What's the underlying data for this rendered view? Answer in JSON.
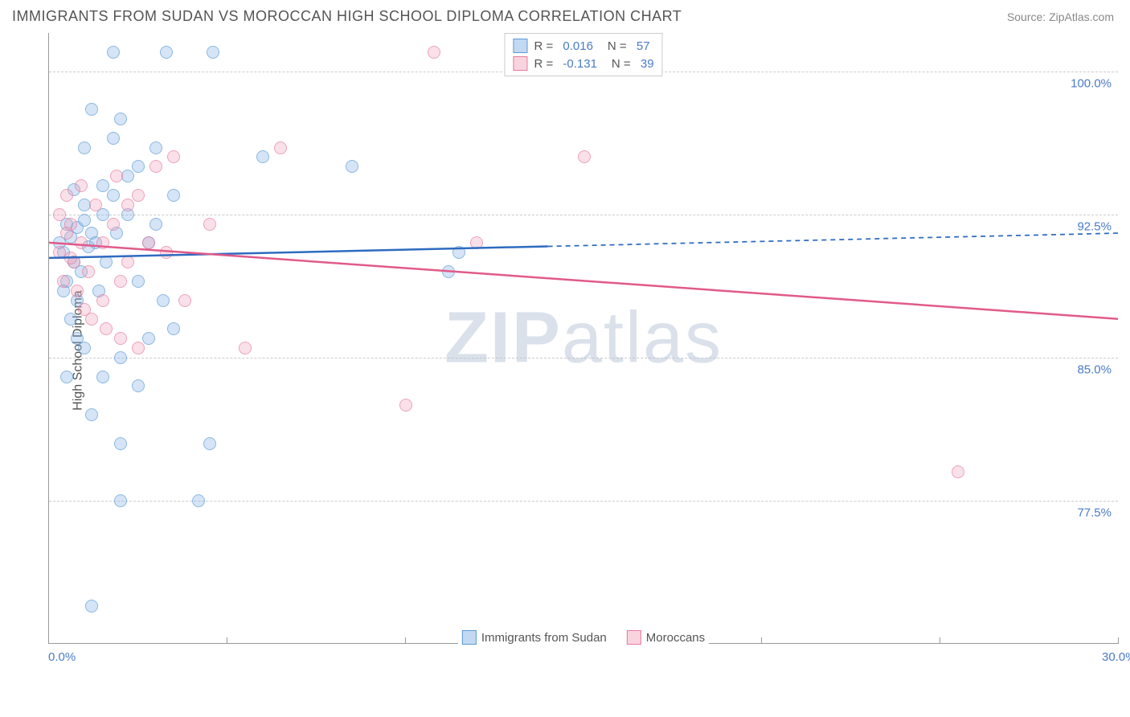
{
  "header": {
    "title": "IMMIGRANTS FROM SUDAN VS MOROCCAN HIGH SCHOOL DIPLOMA CORRELATION CHART",
    "source": "Source: ZipAtlas.com"
  },
  "chart": {
    "type": "scatter",
    "y_axis_label": "High School Diploma",
    "xlim": [
      0,
      30
    ],
    "ylim": [
      70,
      102
    ],
    "x_ticks": [
      0,
      5,
      10,
      15,
      20,
      25,
      30
    ],
    "x_tick_labels": {
      "0": "0.0%",
      "30": "30.0%"
    },
    "y_gridlines": [
      77.5,
      85.0,
      92.5,
      100.0
    ],
    "y_tick_labels": [
      "77.5%",
      "85.0%",
      "92.5%",
      "100.0%"
    ],
    "background_color": "#ffffff",
    "grid_color": "#cccccc",
    "axis_color": "#999999",
    "tick_label_color": "#4a7bc8",
    "axis_label_color": "#555555",
    "marker_radius": 8,
    "series": [
      {
        "name": "Immigrants from Sudan",
        "color_fill": "rgba(135,180,230,0.5)",
        "color_stroke": "#5a9bd5",
        "R": "0.016",
        "N": "57",
        "trend": {
          "x1": 0,
          "y1": 90.2,
          "x2": 30,
          "y2": 91.5,
          "solid_until_x": 14,
          "color": "#2e6bc0",
          "width": 2.5
        },
        "points": [
          {
            "x": 0.3,
            "y": 91
          },
          {
            "x": 0.4,
            "y": 90.5
          },
          {
            "x": 0.5,
            "y": 92
          },
          {
            "x": 0.6,
            "y": 91.3
          },
          {
            "x": 0.7,
            "y": 90
          },
          {
            "x": 0.8,
            "y": 91.8
          },
          {
            "x": 0.9,
            "y": 89.5
          },
          {
            "x": 1.0,
            "y": 92.2
          },
          {
            "x": 1.1,
            "y": 90.8
          },
          {
            "x": 1.2,
            "y": 91.5
          },
          {
            "x": 0.5,
            "y": 89
          },
          {
            "x": 0.8,
            "y": 88
          },
          {
            "x": 1.0,
            "y": 93
          },
          {
            "x": 1.3,
            "y": 91
          },
          {
            "x": 1.5,
            "y": 92.5
          },
          {
            "x": 1.2,
            "y": 98
          },
          {
            "x": 1.8,
            "y": 96.5
          },
          {
            "x": 2.0,
            "y": 97.5
          },
          {
            "x": 1.5,
            "y": 94
          },
          {
            "x": 2.2,
            "y": 94.5
          },
          {
            "x": 1.8,
            "y": 101
          },
          {
            "x": 3.3,
            "y": 101
          },
          {
            "x": 4.6,
            "y": 101
          },
          {
            "x": 2.5,
            "y": 89
          },
          {
            "x": 2.8,
            "y": 91
          },
          {
            "x": 3.0,
            "y": 92
          },
          {
            "x": 3.2,
            "y": 88
          },
          {
            "x": 3.5,
            "y": 86.5
          },
          {
            "x": 2.0,
            "y": 85
          },
          {
            "x": 2.5,
            "y": 83.5
          },
          {
            "x": 1.5,
            "y": 84
          },
          {
            "x": 1.0,
            "y": 85.5
          },
          {
            "x": 0.8,
            "y": 86
          },
          {
            "x": 1.2,
            "y": 82
          },
          {
            "x": 2.0,
            "y": 80.5
          },
          {
            "x": 4.5,
            "y": 80.5
          },
          {
            "x": 2.0,
            "y": 77.5
          },
          {
            "x": 4.2,
            "y": 77.5
          },
          {
            "x": 1.2,
            "y": 72
          },
          {
            "x": 0.5,
            "y": 84
          },
          {
            "x": 3.0,
            "y": 96
          },
          {
            "x": 6.0,
            "y": 95.5
          },
          {
            "x": 8.5,
            "y": 95
          },
          {
            "x": 11.2,
            "y": 89.5
          },
          {
            "x": 11.5,
            "y": 90.5
          },
          {
            "x": 1.8,
            "y": 93.5
          },
          {
            "x": 0.6,
            "y": 87
          },
          {
            "x": 3.5,
            "y": 93.5
          },
          {
            "x": 2.5,
            "y": 95
          },
          {
            "x": 1.0,
            "y": 96
          },
          {
            "x": 0.7,
            "y": 93.8
          },
          {
            "x": 1.4,
            "y": 88.5
          },
          {
            "x": 2.8,
            "y": 86
          },
          {
            "x": 0.4,
            "y": 88.5
          },
          {
            "x": 1.6,
            "y": 90
          },
          {
            "x": 2.2,
            "y": 92.5
          },
          {
            "x": 1.9,
            "y": 91.5
          }
        ]
      },
      {
        "name": "Moroccans",
        "color_fill": "rgba(240,160,185,0.45)",
        "color_stroke": "#e57ba0",
        "R": "-0.131",
        "N": "39",
        "trend": {
          "x1": 0,
          "y1": 91.0,
          "x2": 30,
          "y2": 87.0,
          "solid_until_x": 30,
          "color": "#e15a8a",
          "width": 2.5
        },
        "points": [
          {
            "x": 0.3,
            "y": 90.5
          },
          {
            "x": 0.5,
            "y": 91.5
          },
          {
            "x": 0.7,
            "y": 90
          },
          {
            "x": 0.9,
            "y": 91
          },
          {
            "x": 1.1,
            "y": 89.5
          },
          {
            "x": 0.4,
            "y": 89
          },
          {
            "x": 0.6,
            "y": 92
          },
          {
            "x": 1.5,
            "y": 91
          },
          {
            "x": 1.8,
            "y": 92
          },
          {
            "x": 2.0,
            "y": 89
          },
          {
            "x": 2.2,
            "y": 93
          },
          {
            "x": 3.0,
            "y": 95
          },
          {
            "x": 3.5,
            "y": 95.5
          },
          {
            "x": 2.5,
            "y": 93.5
          },
          {
            "x": 4.5,
            "y": 92
          },
          {
            "x": 1.5,
            "y": 88
          },
          {
            "x": 2.0,
            "y": 86
          },
          {
            "x": 2.5,
            "y": 85.5
          },
          {
            "x": 3.8,
            "y": 88
          },
          {
            "x": 5.5,
            "y": 85.5
          },
          {
            "x": 6.5,
            "y": 96
          },
          {
            "x": 10.8,
            "y": 101
          },
          {
            "x": 15.0,
            "y": 95.5
          },
          {
            "x": 12.0,
            "y": 91
          },
          {
            "x": 10.0,
            "y": 82.5
          },
          {
            "x": 25.5,
            "y": 79
          },
          {
            "x": 1.0,
            "y": 87.5
          },
          {
            "x": 0.8,
            "y": 88.5
          },
          {
            "x": 1.3,
            "y": 93
          },
          {
            "x": 0.5,
            "y": 93.5
          },
          {
            "x": 0.3,
            "y": 92.5
          },
          {
            "x": 2.8,
            "y": 91
          },
          {
            "x": 1.6,
            "y": 86.5
          },
          {
            "x": 0.9,
            "y": 94
          },
          {
            "x": 1.2,
            "y": 87
          },
          {
            "x": 2.2,
            "y": 90
          },
          {
            "x": 3.3,
            "y": 90.5
          },
          {
            "x": 1.9,
            "y": 94.5
          },
          {
            "x": 0.6,
            "y": 90.2
          }
        ]
      }
    ],
    "legend_bottom": [
      {
        "label": "Immigrants from Sudan",
        "class": "blue"
      },
      {
        "label": "Moroccans",
        "class": "pink"
      }
    ],
    "watermark": {
      "bold": "ZIP",
      "light": "atlas"
    }
  }
}
